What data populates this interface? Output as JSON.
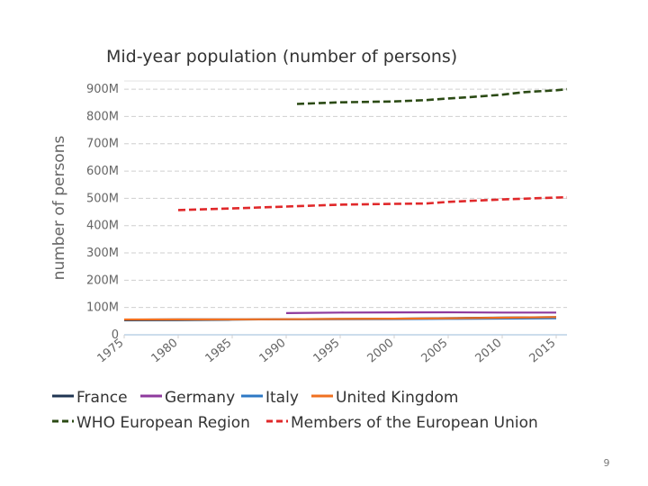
{
  "page_number": "9",
  "chart_data": {
    "type": "line",
    "title": "Mid-year population (number of persons)",
    "ylabel": "number of persons",
    "xlabel": "",
    "xlim": [
      1975,
      2016
    ],
    "ylim": [
      0,
      930000000
    ],
    "x_ticks": [
      1975,
      1980,
      1985,
      1990,
      1995,
      2000,
      2005,
      2010,
      2015
    ],
    "y_ticks": [
      {
        "value": 0,
        "label": "0"
      },
      {
        "value": 100000000,
        "label": "100M"
      },
      {
        "value": 200000000,
        "label": "200M"
      },
      {
        "value": 300000000,
        "label": "300M"
      },
      {
        "value": 400000000,
        "label": "400M"
      },
      {
        "value": 500000000,
        "label": "500M"
      },
      {
        "value": 600000000,
        "label": "600M"
      },
      {
        "value": 700000000,
        "label": "700M"
      },
      {
        "value": 800000000,
        "label": "800M"
      },
      {
        "value": 900000000,
        "label": "900M"
      }
    ],
    "series": [
      {
        "name": "France",
        "color": "#1f3552",
        "dashed": false,
        "x": [
          1975,
          1980,
          1985,
          1990,
          1995,
          2000,
          2005,
          2010,
          2015
        ],
        "values": [
          53000000,
          54000000,
          55500000,
          57000000,
          58000000,
          59000000,
          61000000,
          63000000,
          64500000
        ]
      },
      {
        "name": "Germany",
        "color": "#8e3a9d",
        "dashed": false,
        "x": [
          1990,
          1995,
          2000,
          2005,
          2010,
          2015
        ],
        "values": [
          79500000,
          81500000,
          82000000,
          82500000,
          81500000,
          81500000
        ]
      },
      {
        "name": "Italy",
        "color": "#2d78c4",
        "dashed": false,
        "x": [
          1975,
          1980,
          1985,
          1990,
          1995,
          2000,
          2005,
          2010,
          2015
        ],
        "values": [
          55500000,
          56500000,
          56500000,
          56700000,
          56800000,
          57000000,
          58500000,
          59500000,
          60500000
        ]
      },
      {
        "name": "United Kingdom",
        "color": "#f07020",
        "dashed": false,
        "x": [
          1975,
          1980,
          1985,
          1990,
          1995,
          2000,
          2005,
          2010,
          2015
        ],
        "values": [
          56000000,
          56300000,
          56500000,
          57200000,
          58000000,
          58900000,
          60300000,
          62700000,
          65000000
        ]
      },
      {
        "name": "WHO European Region",
        "color": "#2b4a14",
        "dashed": true,
        "x": [
          1991,
          1995,
          2000,
          2003,
          2005,
          2007,
          2010,
          2012,
          2015,
          2016
        ],
        "values": [
          846000000,
          852000000,
          855000000,
          860000000,
          866000000,
          871000000,
          880000000,
          889000000,
          896000000,
          900000000
        ]
      },
      {
        "name": "Members of the European Union",
        "color": "#e0282a",
        "dashed": true,
        "x": [
          1980,
          1985,
          1990,
          1995,
          2000,
          2003,
          2005,
          2010,
          2015,
          2016
        ],
        "values": [
          457000000,
          463000000,
          470000000,
          477000000,
          480000000,
          481000000,
          487000000,
          496000000,
          503000000,
          504000000
        ]
      }
    ],
    "legend": {
      "placement": "bottom",
      "rows": [
        [
          "France",
          "Germany",
          "Italy",
          "United Kingdom"
        ],
        [
          "WHO European Region",
          "Members of the European Union"
        ]
      ]
    },
    "grid": true
  }
}
